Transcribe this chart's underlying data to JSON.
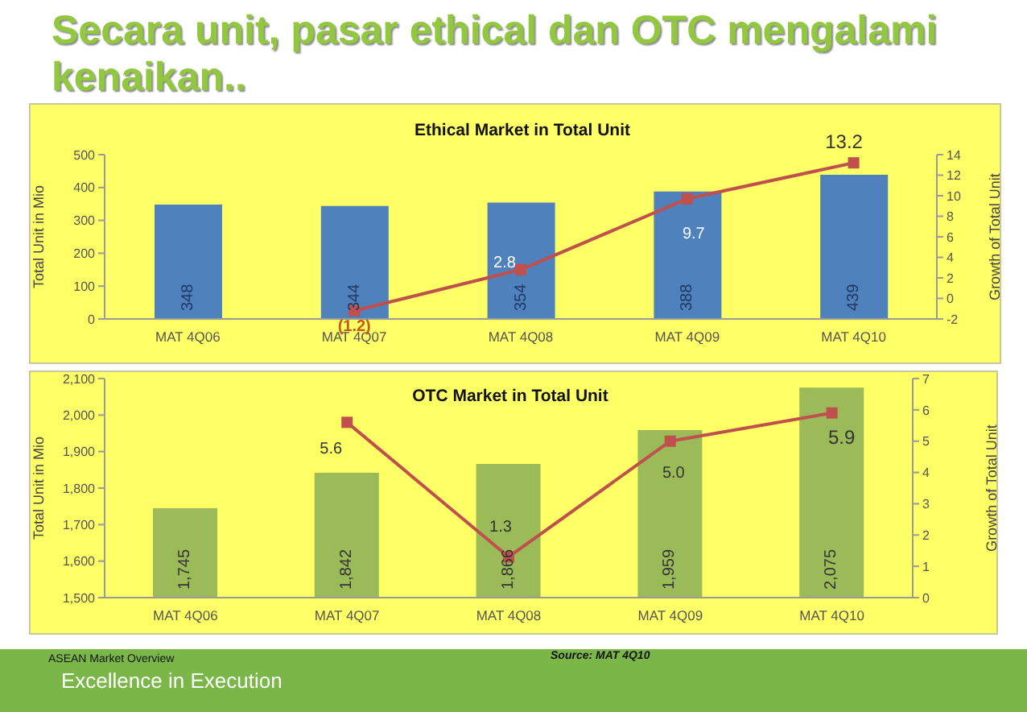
{
  "chart_data": [
    {
      "type": "other",
      "title": "Secara unit, pasar ethical dan OTC mengalami kenaikan..",
      "annotations": [
        "ASEAN Market Overview",
        "Source: MAT 4Q10",
        "Excellence in Execution"
      ]
    },
    {
      "type": "bar",
      "title": "Ethical Market in Total Unit",
      "categories": [
        "MAT 4Q06",
        "MAT 4Q07",
        "MAT 4Q08",
        "MAT 4Q09",
        "MAT 4Q10"
      ],
      "ylabel": "Total Unit in Mio",
      "y2label": "Growth of Total Unit",
      "ylim": [
        0,
        500
      ],
      "yticks": [
        0,
        100,
        200,
        300,
        400,
        500
      ],
      "y2lim": [
        -2,
        14
      ],
      "y2ticks": [
        -2,
        0,
        2,
        4,
        6,
        8,
        10,
        12,
        14
      ],
      "marker": "square",
      "series": [
        {
          "type": "bar",
          "color": "#4f81bd",
          "values": [
            348,
            344,
            354,
            388,
            439
          ],
          "value_labels": [
            "348",
            "344",
            "354",
            "388",
            "439"
          ]
        },
        {
          "type": "line",
          "axis": "y2",
          "color": "#c0504d",
          "values": [
            null,
            -1.2,
            2.8,
            9.7,
            13.2
          ],
          "value_labels": [
            null,
            "(1.2)",
            "2.8",
            "9.7",
            "13.2"
          ]
        }
      ]
    },
    {
      "type": "bar",
      "title": "OTC Market in Total Unit",
      "categories": [
        "MAT 4Q06",
        "MAT 4Q07",
        "MAT 4Q08",
        "MAT 4Q09",
        "MAT 4Q10"
      ],
      "ylabel": "Total Unit in Mio",
      "y2label": "Growth of Total Unit",
      "ylim": [
        1500,
        2100
      ],
      "yticks": [
        {
          "value": 1500,
          "label": "1,500"
        },
        {
          "value": 1600,
          "label": "1,600"
        },
        {
          "value": 1700,
          "label": "1,700"
        },
        {
          "value": 1800,
          "label": "1,800"
        },
        {
          "value": 1900,
          "label": "1,900"
        },
        {
          "value": 2000,
          "label": "2,000"
        },
        {
          "value": 2100,
          "label": "2,100"
        }
      ],
      "y2lim": [
        0,
        7
      ],
      "y2ticks": [
        0,
        1,
        2,
        3,
        4,
        5,
        6,
        7
      ],
      "marker": "square",
      "series": [
        {
          "type": "bar",
          "color": "#9bbb59",
          "values": [
            1745,
            1842,
            1866,
            1959,
            2075
          ],
          "value_labels": [
            "1,745",
            "1,842",
            "1,866",
            "1,959",
            "2,075"
          ]
        },
        {
          "type": "line",
          "axis": "y2",
          "color": "#c0504d",
          "values": [
            null,
            5.6,
            1.3,
            5.0,
            5.9
          ],
          "value_labels": [
            null,
            "5.6",
            "1.3",
            "5.0",
            "5.9"
          ]
        }
      ]
    }
  ]
}
